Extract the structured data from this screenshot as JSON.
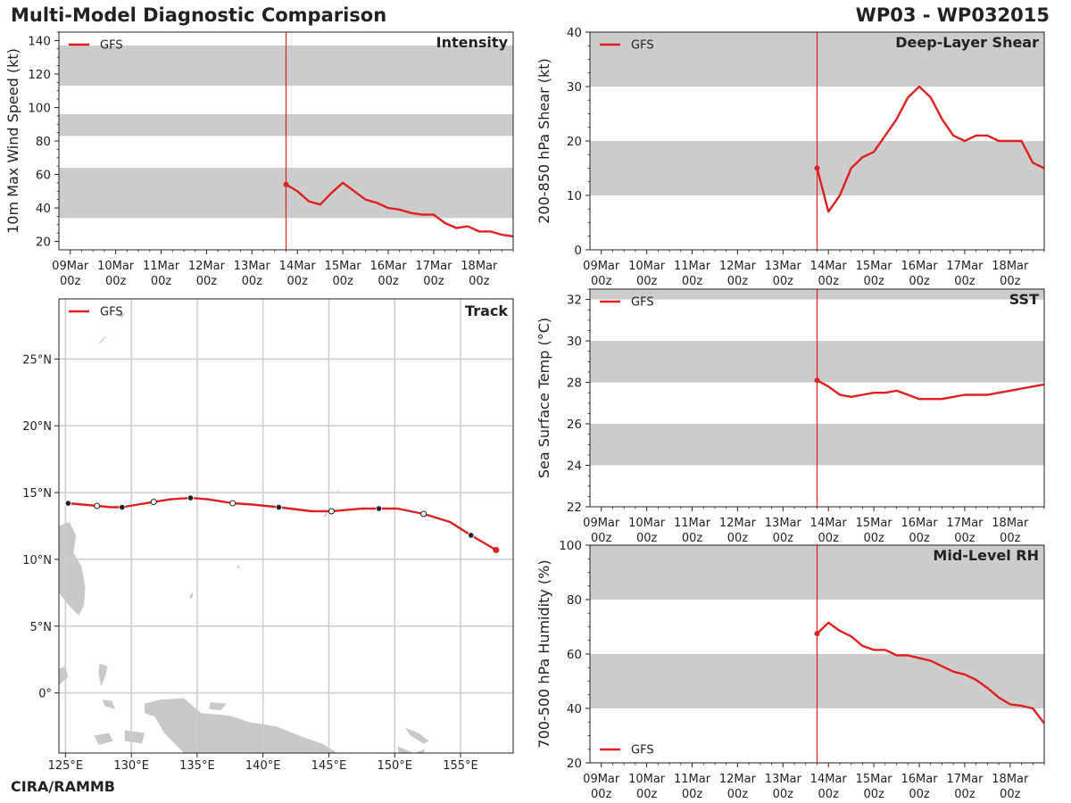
{
  "header": {
    "title": "Multi-Model Diagnostic Comparison",
    "storm_id": "WP03 - WP032015"
  },
  "footer": {
    "credit": "CIRA/RAMMB"
  },
  "colors": {
    "series": "#e02020",
    "band": "#cccccc",
    "grid": "#cccccc",
    "land": "#c8c8c8"
  },
  "time_axis": {
    "ticks": [
      {
        "t": 0,
        "day": "09Mar",
        "hr": "00z"
      },
      {
        "t": 24,
        "day": "10Mar",
        "hr": "00z"
      },
      {
        "t": 48,
        "day": "11Mar",
        "hr": "00z"
      },
      {
        "t": 72,
        "day": "12Mar",
        "hr": "00z"
      },
      {
        "t": 96,
        "day": "13Mar",
        "hr": "00z"
      },
      {
        "t": 120,
        "day": "14Mar",
        "hr": "00z"
      },
      {
        "t": 144,
        "day": "15Mar",
        "hr": "00z"
      },
      {
        "t": 168,
        "day": "16Mar",
        "hr": "00z"
      },
      {
        "t": 192,
        "day": "17Mar",
        "hr": "00z"
      },
      {
        "t": 216,
        "day": "18Mar",
        "hr": "00z"
      }
    ],
    "xlim": [
      -6,
      234
    ],
    "init_time": 114
  },
  "chart_data": [
    {
      "id": "intensity",
      "type": "line",
      "title": "Intensity",
      "ylabel": "10m Max Wind Speed (kt)",
      "xlabel": "",
      "ylim": [
        15,
        145
      ],
      "yticks": [
        20,
        40,
        60,
        80,
        100,
        120,
        140
      ],
      "bands": [
        [
          34,
          64
        ],
        [
          83,
          96
        ],
        [
          113,
          137
        ]
      ],
      "legend": "GFS",
      "legend_position": "top-left",
      "series": [
        {
          "name": "GFS",
          "x": [
            114,
            120,
            126,
            132,
            138,
            144,
            150,
            156,
            162,
            168,
            174,
            180,
            186,
            192,
            198,
            204,
            210,
            216,
            222,
            228,
            234
          ],
          "values": [
            54,
            50,
            44,
            42,
            49,
            55,
            50,
            45,
            43,
            40,
            39,
            37,
            36,
            36,
            31,
            28,
            29,
            26,
            26,
            24,
            23
          ]
        }
      ]
    },
    {
      "id": "shear",
      "type": "line",
      "title": "Deep-Layer Shear",
      "ylabel": "200-850 hPa Shear (kt)",
      "xlabel": "",
      "ylim": [
        0,
        40
      ],
      "yticks": [
        0,
        10,
        20,
        30,
        40
      ],
      "bands": [
        [
          10,
          20
        ],
        [
          30,
          40
        ]
      ],
      "legend": "GFS",
      "legend_position": "top-left",
      "series": [
        {
          "name": "GFS",
          "x": [
            114,
            120,
            126,
            132,
            138,
            144,
            150,
            156,
            162,
            168,
            174,
            180,
            186,
            192,
            198,
            204,
            210,
            216,
            222,
            228,
            234
          ],
          "values": [
            15,
            7,
            10,
            15,
            17,
            18,
            21,
            24,
            28,
            30,
            28,
            24,
            21,
            20,
            21,
            21,
            20,
            20,
            20,
            16,
            15
          ]
        }
      ]
    },
    {
      "id": "sst",
      "type": "line",
      "title": "SST",
      "ylabel": "Sea Surface Temp (°C)",
      "xlabel": "",
      "ylim": [
        22,
        32.5
      ],
      "yticks": [
        22,
        24,
        26,
        28,
        30,
        32
      ],
      "bands": [
        [
          24,
          26
        ],
        [
          28,
          30
        ],
        [
          32,
          34
        ]
      ],
      "legend": "GFS",
      "legend_position": "top-left",
      "series": [
        {
          "name": "GFS",
          "x": [
            114,
            120,
            126,
            132,
            138,
            144,
            150,
            156,
            162,
            168,
            174,
            180,
            186,
            192,
            198,
            204,
            210,
            216,
            222,
            228,
            234
          ],
          "values": [
            28.1,
            27.8,
            27.4,
            27.3,
            27.4,
            27.5,
            27.5,
            27.6,
            27.4,
            27.2,
            27.2,
            27.2,
            27.3,
            27.4,
            27.4,
            27.4,
            27.5,
            27.6,
            27.7,
            27.8,
            27.9
          ]
        }
      ]
    },
    {
      "id": "rh",
      "type": "line",
      "title": "Mid-Level RH",
      "ylabel": "700-500 hPa Humidity (%)",
      "xlabel": "",
      "ylim": [
        20,
        100
      ],
      "yticks": [
        20,
        40,
        60,
        80,
        100
      ],
      "bands": [
        [
          40,
          60
        ],
        [
          80,
          100
        ]
      ],
      "legend": "GFS",
      "legend_position": "bottom-left",
      "series": [
        {
          "name": "GFS",
          "x": [
            114,
            120,
            126,
            132,
            138,
            144,
            150,
            156,
            162,
            168,
            174,
            180,
            186,
            192,
            198,
            204,
            210,
            216,
            222,
            228,
            234
          ],
          "values": [
            67.5,
            71.5,
            68.5,
            66.5,
            63,
            61.5,
            61.5,
            59.5,
            59.5,
            58.5,
            57.5,
            55.5,
            53.5,
            52.5,
            50.5,
            47.5,
            44,
            41.5,
            41,
            40,
            34.5
          ]
        }
      ]
    },
    {
      "id": "track",
      "type": "scatter",
      "title": "Track",
      "xlabel": "",
      "ylabel": "",
      "xlim": [
        124.5,
        159
      ],
      "ylim": [
        -4.5,
        29.5
      ],
      "xticks": [
        {
          "v": 125,
          "label": "125°E"
        },
        {
          "v": 130,
          "label": "130°E"
        },
        {
          "v": 135,
          "label": "135°E"
        },
        {
          "v": 140,
          "label": "140°E"
        },
        {
          "v": 145,
          "label": "145°E"
        },
        {
          "v": 150,
          "label": "150°E"
        },
        {
          "v": 155,
          "label": "155°E"
        }
      ],
      "yticks": [
        {
          "v": 0,
          "label": "0°"
        },
        {
          "v": 5,
          "label": "5°N"
        },
        {
          "v": 10,
          "label": "10°N"
        },
        {
          "v": 15,
          "label": "15°N"
        },
        {
          "v": 20,
          "label": "20°N"
        },
        {
          "v": 25,
          "label": "25°N"
        }
      ],
      "legend": "GFS",
      "legend_position": "top-left",
      "series": [
        {
          "name": "GFS",
          "lon": [
            157.7,
            155.8,
            154.2,
            152.2,
            150.2,
            148.8,
            147.5,
            145.2,
            143.7,
            141.2,
            139.2,
            137.7,
            135.8,
            134.5,
            133.0,
            131.7,
            130.5,
            129.3,
            128.5,
            127.4,
            126.3,
            125.2
          ],
          "lat": [
            10.7,
            11.8,
            12.8,
            13.4,
            13.8,
            13.8,
            13.8,
            13.6,
            13.6,
            13.9,
            14.1,
            14.2,
            14.5,
            14.6,
            14.5,
            14.3,
            14.1,
            13.9,
            13.9,
            14.0,
            14.1,
            14.2
          ],
          "markers": [
            "init",
            "filled",
            "none",
            "open",
            "none",
            "filled",
            "none",
            "open",
            "none",
            "filled",
            "none",
            "open",
            "none",
            "filled",
            "none",
            "open",
            "none",
            "filled",
            "none",
            "open",
            "none",
            "filled"
          ]
        }
      ]
    }
  ]
}
